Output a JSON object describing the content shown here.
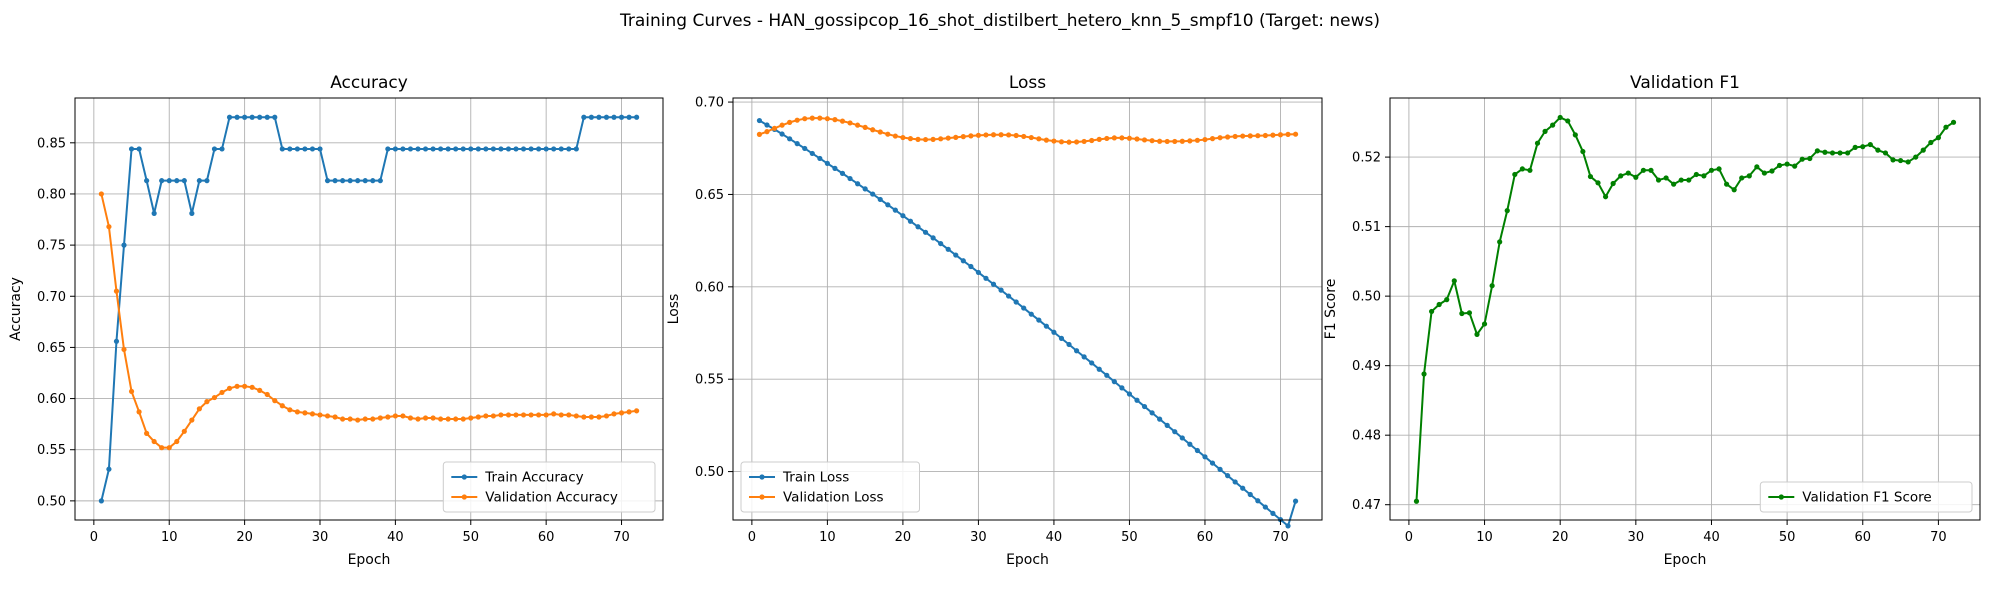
{
  "figure": {
    "suptitle": "Training Curves - HAN_gossipcop_16_shot_distilbert_hetero_knn_5_smpf10 (Target: news)"
  },
  "colors": {
    "train": "#1f77b4",
    "validation": "#ff7f0e",
    "f1": "#008000",
    "grid": "#b0b0b0"
  },
  "chart_data": [
    {
      "type": "line",
      "title": "Accuracy",
      "xlabel": "Epoch",
      "ylabel": "Accuracy",
      "xlim": [
        -2.5,
        75.5
      ],
      "ylim": [
        0.4813,
        0.8938
      ],
      "xticks": [
        0,
        10,
        20,
        30,
        40,
        50,
        60,
        70
      ],
      "yticks": [
        0.5,
        0.55,
        0.6,
        0.65,
        0.7,
        0.75,
        0.8,
        0.85
      ],
      "ytick_labels": [
        "0.50",
        "0.55",
        "0.60",
        "0.65",
        "0.70",
        "0.75",
        "0.80",
        "0.85"
      ],
      "grid": true,
      "legend_position": "lower-right",
      "series": [
        {
          "name": "Train Accuracy",
          "color": "#1f77b4",
          "x_start": 1,
          "values": [
            0.5,
            0.531,
            0.656,
            0.75,
            0.844,
            0.844,
            0.813,
            0.781,
            0.813,
            0.813,
            0.813,
            0.813,
            0.781,
            0.813,
            0.813,
            0.844,
            0.844,
            0.875,
            0.875,
            0.875,
            0.875,
            0.875,
            0.875,
            0.875,
            0.844,
            0.844,
            0.844,
            0.844,
            0.844,
            0.844,
            0.813,
            0.813,
            0.813,
            0.813,
            0.813,
            0.813,
            0.813,
            0.813,
            0.844,
            0.844,
            0.844,
            0.844,
            0.844,
            0.844,
            0.844,
            0.844,
            0.844,
            0.844,
            0.844,
            0.844,
            0.844,
            0.844,
            0.844,
            0.844,
            0.844,
            0.844,
            0.844,
            0.844,
            0.844,
            0.844,
            0.844,
            0.844,
            0.844,
            0.844,
            0.875,
            0.875,
            0.875,
            0.875,
            0.875,
            0.875,
            0.875,
            0.875
          ]
        },
        {
          "name": "Validation Accuracy",
          "color": "#ff7f0e",
          "x_start": 1,
          "values": [
            0.8,
            0.768,
            0.705,
            0.648,
            0.607,
            0.587,
            0.566,
            0.558,
            0.552,
            0.552,
            0.558,
            0.568,
            0.579,
            0.59,
            0.597,
            0.601,
            0.606,
            0.61,
            0.612,
            0.612,
            0.611,
            0.608,
            0.604,
            0.598,
            0.593,
            0.589,
            0.587,
            0.586,
            0.585,
            0.584,
            0.583,
            0.582,
            0.58,
            0.58,
            0.579,
            0.58,
            0.58,
            0.581,
            0.582,
            0.583,
            0.583,
            0.581,
            0.58,
            0.581,
            0.581,
            0.58,
            0.58,
            0.58,
            0.58,
            0.581,
            0.582,
            0.583,
            0.583,
            0.584,
            0.584,
            0.584,
            0.584,
            0.584,
            0.584,
            0.584,
            0.585,
            0.584,
            0.584,
            0.583,
            0.582,
            0.582,
            0.582,
            0.583,
            0.585,
            0.586,
            0.587,
            0.588
          ]
        }
      ]
    },
    {
      "type": "line",
      "title": "Loss",
      "xlabel": "Epoch",
      "ylabel": "Loss",
      "xlim": [
        -2.5,
        75.5
      ],
      "ylim": [
        0.4738,
        0.7022
      ],
      "xticks": [
        0,
        10,
        20,
        30,
        40,
        50,
        60,
        70
      ],
      "yticks": [
        0.5,
        0.55,
        0.6,
        0.65,
        0.7
      ],
      "ytick_labels": [
        "0.50",
        "0.55",
        "0.60",
        "0.65",
        "0.70"
      ],
      "grid": true,
      "legend_position": "lower-left",
      "series": [
        {
          "name": "Train Loss",
          "color": "#1f77b4",
          "x_start": 1,
          "values": [
            0.69,
            0.6876,
            0.6852,
            0.6827,
            0.6801,
            0.6775,
            0.6749,
            0.6722,
            0.6695,
            0.6668,
            0.6641,
            0.6614,
            0.6586,
            0.6558,
            0.653,
            0.6502,
            0.6473,
            0.6444,
            0.6415,
            0.6385,
            0.6355,
            0.6325,
            0.6295,
            0.6265,
            0.6234,
            0.6203,
            0.6172,
            0.6141,
            0.611,
            0.6078,
            0.6046,
            0.6014,
            0.5982,
            0.595,
            0.5918,
            0.5885,
            0.5852,
            0.582,
            0.5787,
            0.5754,
            0.5721,
            0.5688,
            0.5654,
            0.5621,
            0.5588,
            0.5554,
            0.5521,
            0.5487,
            0.5453,
            0.542,
            0.5386,
            0.5352,
            0.5318,
            0.5284,
            0.525,
            0.5216,
            0.5182,
            0.5148,
            0.5114,
            0.508,
            0.5046,
            0.5012,
            0.4978,
            0.4944,
            0.491,
            0.4876,
            0.4842,
            0.4808,
            0.4774,
            0.474,
            0.4706,
            0.484
          ]
        },
        {
          "name": "Validation Loss",
          "color": "#ff7f0e",
          "x_start": 1,
          "values": [
            0.6825,
            0.684,
            0.6858,
            0.6875,
            0.689,
            0.6902,
            0.691,
            0.6913,
            0.6913,
            0.691,
            0.6905,
            0.6897,
            0.6887,
            0.6875,
            0.6863,
            0.685,
            0.6838,
            0.6826,
            0.6816,
            0.6808,
            0.6802,
            0.6798,
            0.6797,
            0.6798,
            0.6801,
            0.6805,
            0.6809,
            0.6813,
            0.6817,
            0.682,
            0.6822,
            0.6823,
            0.6823,
            0.6822,
            0.6819,
            0.6814,
            0.6808,
            0.6801,
            0.6794,
            0.6789,
            0.6785,
            0.6783,
            0.6784,
            0.6787,
            0.6792,
            0.6798,
            0.6803,
            0.6806,
            0.6806,
            0.6804,
            0.68,
            0.6795,
            0.6791,
            0.6788,
            0.6787,
            0.6787,
            0.6788,
            0.679,
            0.6793,
            0.6797,
            0.6802,
            0.6807,
            0.6811,
            0.6814,
            0.6816,
            0.6817,
            0.6818,
            0.6819,
            0.6821,
            0.6823,
            0.6825,
            0.6826
          ]
        }
      ]
    },
    {
      "type": "line",
      "title": "Validation F1",
      "xlabel": "Epoch",
      "ylabel": "F1 Score",
      "xlim": [
        -2.5,
        75.5
      ],
      "ylim": [
        0.4678,
        0.5285
      ],
      "xticks": [
        0,
        10,
        20,
        30,
        40,
        50,
        60,
        70
      ],
      "yticks": [
        0.47,
        0.48,
        0.49,
        0.5,
        0.51,
        0.52
      ],
      "ytick_labels": [
        "0.47",
        "0.48",
        "0.49",
        "0.50",
        "0.51",
        "0.52"
      ],
      "grid": true,
      "legend_position": "lower-right",
      "series": [
        {
          "name": "Validation F1 Score",
          "color": "#008000",
          "x_start": 1,
          "values": [
            0.4705,
            0.4888,
            0.4978,
            0.4988,
            0.4995,
            0.5022,
            0.4975,
            0.4976,
            0.4945,
            0.496,
            0.5015,
            0.5078,
            0.5123,
            0.5175,
            0.5183,
            0.5181,
            0.522,
            0.5237,
            0.5246,
            0.5257,
            0.5252,
            0.5232,
            0.5208,
            0.5172,
            0.5163,
            0.5143,
            0.5162,
            0.5173,
            0.5177,
            0.5171,
            0.5181,
            0.5181,
            0.5167,
            0.517,
            0.5161,
            0.5167,
            0.5167,
            0.5175,
            0.5173,
            0.5181,
            0.5183,
            0.5161,
            0.5153,
            0.517,
            0.5173,
            0.5186,
            0.5177,
            0.518,
            0.5188,
            0.519,
            0.5187,
            0.5197,
            0.5198,
            0.5209,
            0.5207,
            0.5206,
            0.5206,
            0.5206,
            0.5214,
            0.5215,
            0.5218,
            0.521,
            0.5206,
            0.5196,
            0.5195,
            0.5193,
            0.52,
            0.521,
            0.5221,
            0.5228,
            0.5243,
            0.525
          ]
        }
      ]
    }
  ]
}
